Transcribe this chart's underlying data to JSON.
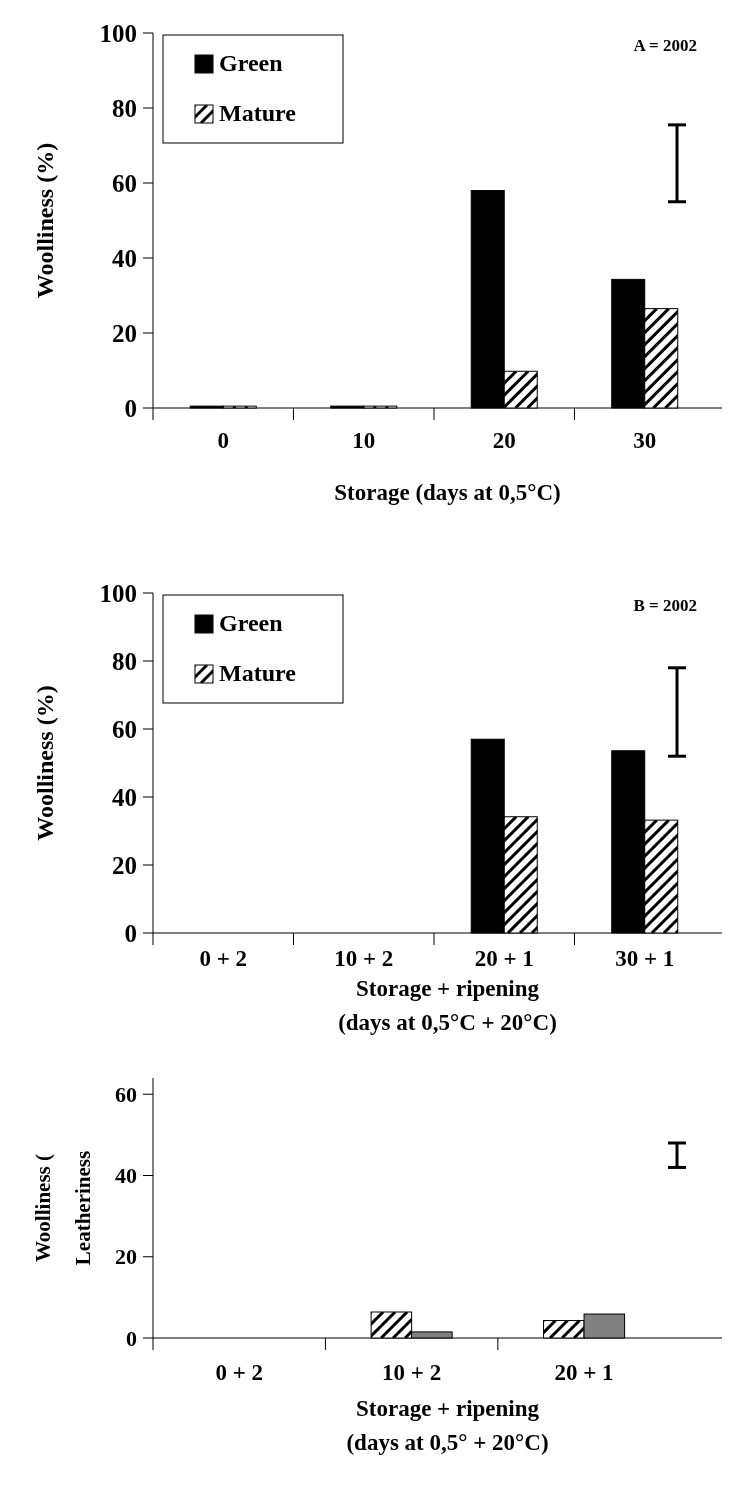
{
  "chart_data": [
    {
      "type": "bar",
      "categories": [
        "0",
        "10",
        "20",
        "30"
      ],
      "xlabel": "Storage (days at 0,5°C)",
      "ylabel": "Woolliness (%)",
      "ylim": [
        0,
        100
      ],
      "yticks": [
        0,
        20,
        40,
        60,
        80,
        100
      ],
      "legend": "top left",
      "annotations": [
        "A = 2002"
      ],
      "series": [
        {
          "name": "Green",
          "color": "#000000",
          "values": [
            0.5,
            0.5,
            58,
            34.3
          ]
        },
        {
          "name": "Mature",
          "color": "#ffffff",
          "values": [
            0.5,
            0.5,
            9.8,
            26.5
          ]
        }
      ]
    },
    {
      "type": "bar",
      "categories": [
        "0 + 2",
        "10 + 2",
        "20 + 1",
        "30 + 1"
      ],
      "xlabel": "Storage + ripening\n(days at 0,5°C + 20°C)",
      "ylabel": "Woolliness (%)",
      "ylim": [
        0,
        100
      ],
      "yticks": [
        0,
        20,
        40,
        60,
        80,
        100
      ],
      "legend": "top left",
      "annotations": [
        "B = 2002"
      ],
      "series": [
        {
          "name": "Green",
          "color": "#000000",
          "values": [
            0,
            0,
            57,
            53.6
          ]
        },
        {
          "name": "Mature",
          "color": "#ffffff",
          "values": [
            0,
            0,
            34.2,
            33.2
          ]
        }
      ]
    },
    {
      "type": "bar",
      "categories": [
        "0 + 2",
        "10 + 2",
        "20 + 1"
      ],
      "xlabel": "Storage + ripening\n(days at 0,5° + 20°C)",
      "ylabel": "Woolliness (\nLeatheriness",
      "ylim": [
        0,
        64
      ],
      "yticks": [
        0,
        20,
        40,
        60
      ],
      "series": [
        {
          "color": "#ffffff",
          "values": [
            0,
            6.4,
            4.3
          ]
        },
        {
          "color": "#808080",
          "values": [
            0,
            1.5,
            5.9
          ]
        }
      ]
    }
  ]
}
